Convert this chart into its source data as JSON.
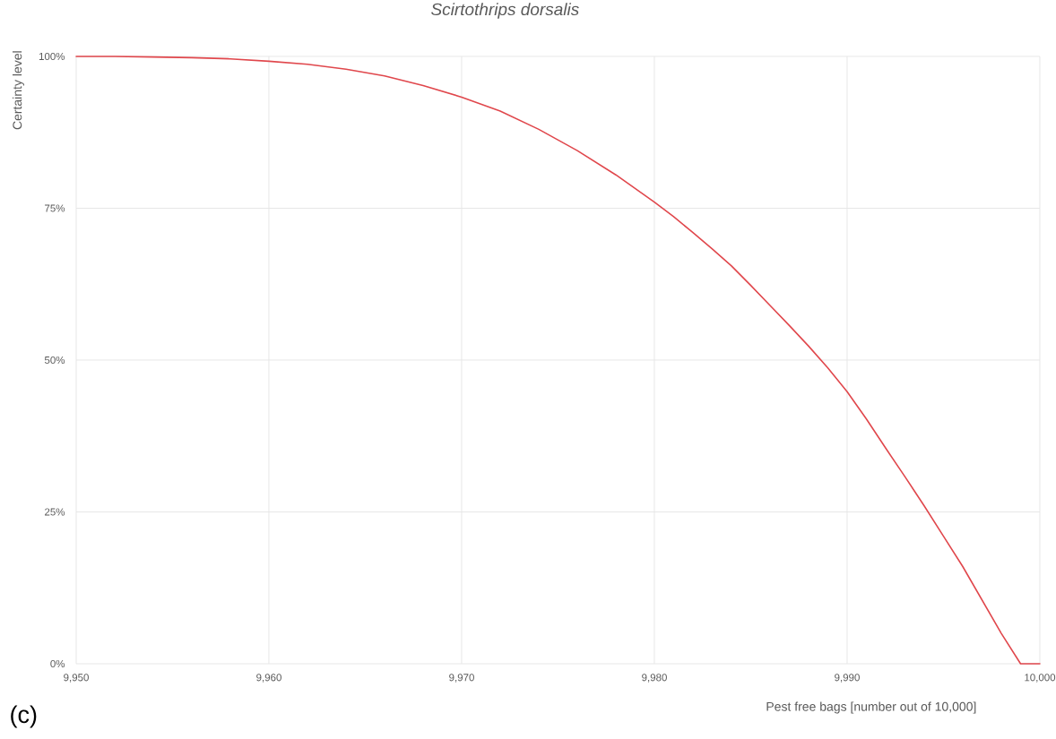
{
  "chart_data": {
    "type": "line",
    "title": "Scirtothrips dorsalis",
    "xlabel": "Pest free bags [number out of 10,000]",
    "ylabel": "Certainty level",
    "annotations": [
      "(c)"
    ],
    "x": [
      9950,
      9952,
      9954,
      9956,
      9958,
      9960,
      9962,
      9964,
      9966,
      9968,
      9970,
      9972,
      9974,
      9976,
      9978,
      9980,
      9981,
      9982,
      9983,
      9984,
      9985,
      9986,
      9987,
      9988,
      9989,
      9990,
      9991,
      9992,
      9993,
      9994,
      9995,
      9996,
      9997,
      9998,
      9999,
      10000
    ],
    "series": [
      {
        "color": "#e0474c",
        "values": [
          100,
          100,
          99.9,
          99.8,
          99.6,
          99.2,
          98.7,
          97.9,
          96.8,
          95.2,
          93.3,
          91,
          88,
          84.5,
          80.5,
          76,
          73.6,
          71,
          68.3,
          65.5,
          62.3,
          59,
          55.7,
          52.3,
          48.7,
          44.8,
          40.3,
          35.5,
          30.8,
          26,
          21,
          16,
          10.5,
          5,
          0,
          0
        ]
      }
    ],
    "xlim": [
      9950,
      10000
    ],
    "ylim": [
      0,
      100
    ],
    "xticks": [
      {
        "value": 9950,
        "label": "9,950"
      },
      {
        "value": 9960,
        "label": "9,960"
      },
      {
        "value": 9970,
        "label": "9,970"
      },
      {
        "value": 9980,
        "label": "9,980"
      },
      {
        "value": 9990,
        "label": "9,990"
      },
      {
        "value": 10000,
        "label": "10,000"
      }
    ],
    "yticks": [
      {
        "value": 0,
        "label": "0%"
      },
      {
        "value": 25,
        "label": "25%"
      },
      {
        "value": 50,
        "label": "50%"
      },
      {
        "value": 75,
        "label": "75%"
      },
      {
        "value": 100,
        "label": "100%"
      }
    ],
    "grid": true
  }
}
